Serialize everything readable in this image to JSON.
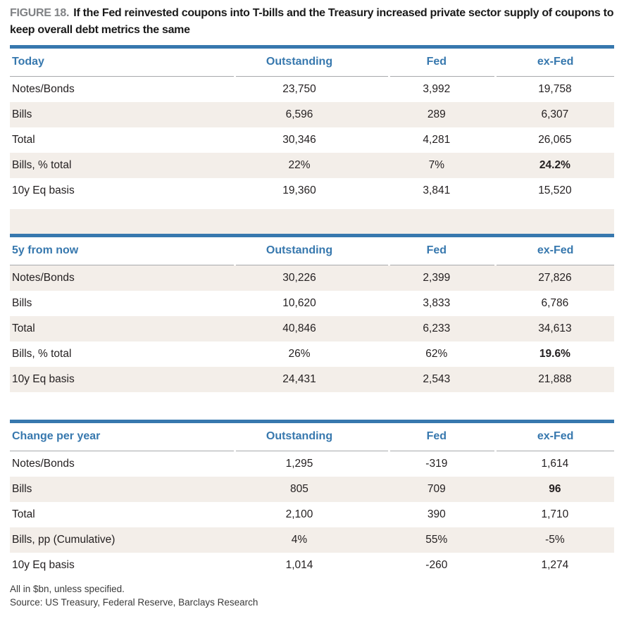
{
  "figure_label": "FIGURE 18.",
  "figure_title": "If the Fed reinvested coupons into T-bills and the Treasury increased private sector supply of coupons to keep overall debt metrics the same",
  "tables": [
    {
      "title": "Today",
      "columns": [
        "Outstanding",
        "Fed",
        "ex-Fed"
      ],
      "rows": [
        {
          "label": "Notes/Bonds",
          "values": [
            "23,750",
            "3,992",
            "19,758"
          ]
        },
        {
          "label": "Bills",
          "values": [
            "6,596",
            "289",
            "6,307"
          ]
        },
        {
          "label": "Total",
          "values": [
            "30,346",
            "4,281",
            "26,065"
          ]
        },
        {
          "label": "Bills, % total",
          "values": [
            "22%",
            "7%",
            "24.2%"
          ]
        },
        {
          "label": "10y Eq basis",
          "values": [
            "19,360",
            "3,841",
            "15,520"
          ]
        }
      ]
    },
    {
      "title": "5y from now",
      "columns": [
        "Outstanding",
        "Fed",
        "ex-Fed"
      ],
      "rows": [
        {
          "label": "Notes/Bonds",
          "values": [
            "30,226",
            "2,399",
            "27,826"
          ]
        },
        {
          "label": "Bills",
          "values": [
            "10,620",
            "3,833",
            "6,786"
          ]
        },
        {
          "label": "Total",
          "values": [
            "40,846",
            "6,233",
            "34,613"
          ]
        },
        {
          "label": "Bills, % total",
          "values": [
            "26%",
            "62%",
            "19.6%"
          ]
        },
        {
          "label": "10y Eq basis",
          "values": [
            "24,431",
            "2,543",
            "21,888"
          ]
        }
      ]
    },
    {
      "title": "Change per year",
      "columns": [
        "Outstanding",
        "Fed",
        "ex-Fed"
      ],
      "rows": [
        {
          "label": "Notes/Bonds",
          "values": [
            "1,295",
            "-319",
            "1,614"
          ]
        },
        {
          "label": "Bills",
          "values": [
            "805",
            "709",
            "96"
          ]
        },
        {
          "label": "Total",
          "values": [
            "2,100",
            "390",
            "1,710"
          ]
        },
        {
          "label": "Bills, pp (Cumulative)",
          "values": [
            "4%",
            "55%",
            "-5%"
          ]
        },
        {
          "label": "10y Eq basis",
          "values": [
            "1,014",
            "-260",
            "1,274"
          ]
        }
      ]
    }
  ],
  "notes": {
    "units": "All in $bn, unless specified.",
    "source": "Source: US Treasury, Federal Reserve, Barclays Research"
  },
  "colors": {
    "accent_blue": "#3778AE",
    "stripe_cream": "#F3EEE9",
    "header_underline": "#A7A9AC",
    "figure_label_gray": "#808285"
  }
}
